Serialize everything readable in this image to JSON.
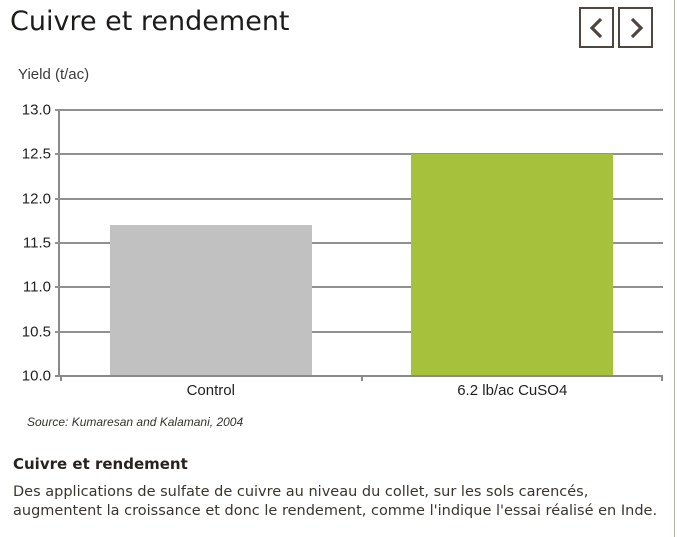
{
  "page": {
    "title": "Cuivre et rendement"
  },
  "nav": {
    "prev_icon": "chevron-left-icon",
    "next_icon": "chevron-right-icon",
    "button_color": "#4e463f"
  },
  "chart_data": {
    "type": "bar",
    "title": "",
    "ylabel": "Yield (t/ac)",
    "xlabel": "",
    "categories": [
      "Control",
      "6.2 lb/ac CuSO4"
    ],
    "values": [
      11.7,
      12.5
    ],
    "bar_colors": [
      "#c1c1c1",
      "#a6c23c"
    ],
    "ylim": [
      10.0,
      13.0
    ],
    "yticks": [
      "13.0",
      "12.5",
      "12.0",
      "11.5",
      "11.0",
      "10.5",
      "10.0"
    ],
    "grid": true,
    "legend": false,
    "source": "Source: Kumaresan and Kalamani, 2004"
  },
  "caption": {
    "title": "Cuivre et rendement",
    "body": "Des applications de sulfate de cuivre au niveau du collet, sur les sols carencés, augmentent la croissance et donc le rendement, comme l'indique l'essai réalisé en Inde."
  },
  "colors": {
    "accent_green": "#a6c23c",
    "neutral_gray": "#c1c1c1",
    "page_border": "#b9b0a4",
    "gridline": "#8a8a8a"
  }
}
